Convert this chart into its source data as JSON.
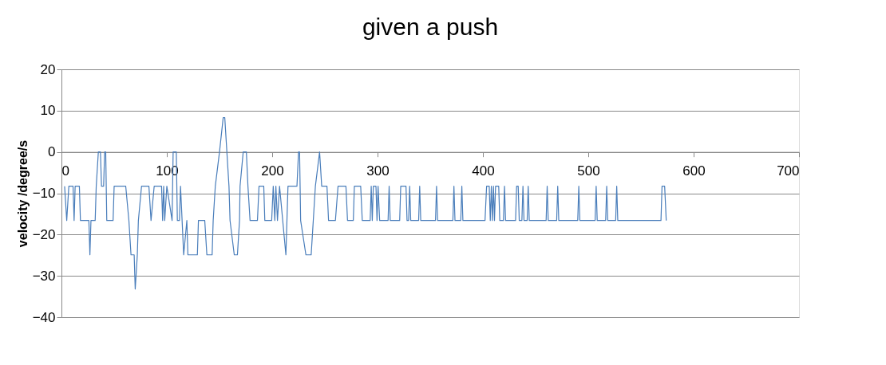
{
  "chart_data": {
    "type": "line",
    "title": "given a push",
    "ylabel": "velocity /degree/s",
    "x": [
      3,
      5,
      7,
      11,
      12,
      13,
      17,
      18,
      26,
      27,
      28,
      32,
      33,
      35,
      37,
      38,
      40,
      41,
      42,
      43,
      49,
      50,
      61,
      64,
      66,
      69,
      70,
      72,
      73,
      76,
      83,
      85,
      88,
      95,
      96,
      97,
      98,
      100,
      105,
      106,
      109,
      110,
      112,
      113,
      116,
      119,
      120,
      129,
      130,
      136,
      138,
      143,
      144,
      146,
      150,
      153.5,
      155,
      157,
      159,
      160,
      164,
      167,
      169,
      169.5,
      172.5,
      175.5,
      177,
      179,
      186,
      187.5,
      192,
      193,
      199.5,
      201,
      202.5,
      203.5,
      205,
      207,
      213,
      215,
      223.5,
      225,
      226,
      227,
      232,
      237,
      239,
      241,
      245,
      247,
      252,
      253.5,
      260,
      262.5,
      270,
      271.5,
      277,
      278,
      284,
      285.5,
      293,
      294,
      295,
      296,
      298.5,
      299.5,
      300.5,
      302,
      310,
      311,
      312,
      321,
      322,
      327,
      328,
      329.5,
      330.5,
      331.5,
      339,
      340,
      341,
      355,
      356,
      357,
      371.5,
      372.5,
      373.5,
      379,
      380,
      381,
      402,
      403.5,
      406,
      407,
      408,
      409,
      410,
      411,
      412,
      415,
      416,
      419.5,
      420.5,
      421.5,
      431,
      432,
      433.5,
      434.5,
      437,
      438,
      439,
      442,
      443,
      444,
      460,
      461,
      462,
      470,
      471,
      472,
      490,
      491,
      492,
      506.5,
      507.5,
      508.5,
      516.5,
      517.5,
      518.5,
      526,
      527,
      528,
      569,
      570,
      572.5,
      574
    ],
    "series": [
      {
        "color": "#4a7ebb",
        "values": [
          -8.3,
          -16.6,
          -8.3,
          -8.3,
          -16.6,
          -8.3,
          -8.3,
          -16.6,
          -16.6,
          -24.9,
          -16.6,
          -16.6,
          -8.3,
          0,
          0,
          -8.3,
          -8.3,
          0,
          0,
          -16.6,
          -16.6,
          -8.3,
          -8.3,
          -16.6,
          -24.9,
          -24.9,
          -33.2,
          -24.9,
          -16.6,
          -8.3,
          -8.3,
          -16.6,
          -8.3,
          -8.3,
          -16.6,
          -8.3,
          -16.6,
          -8.3,
          -16.6,
          0,
          0,
          -16.6,
          -16.6,
          -8.3,
          -24.9,
          -16.6,
          -24.9,
          -24.9,
          -16.6,
          -16.6,
          -24.9,
          -24.9,
          -16.6,
          -8.3,
          0,
          8.3,
          8.3,
          0,
          -8.3,
          -16.6,
          -24.9,
          -24.9,
          -16.6,
          -8.3,
          0,
          0,
          -8.3,
          -16.6,
          -16.6,
          -8.3,
          -8.3,
          -16.6,
          -16.6,
          -8.3,
          -16.6,
          -8.3,
          -16.6,
          -8.3,
          -24.9,
          -8.3,
          -8.3,
          0,
          0,
          -16.6,
          -24.9,
          -24.9,
          -16.6,
          -8.3,
          0,
          -8.3,
          -8.3,
          -16.6,
          -16.6,
          -8.3,
          -8.3,
          -16.6,
          -16.6,
          -8.3,
          -8.3,
          -16.6,
          -16.6,
          -8.3,
          -16.6,
          -8.3,
          -8.3,
          -16.6,
          -8.3,
          -16.6,
          -16.6,
          -8.3,
          -16.6,
          -16.6,
          -8.3,
          -8.3,
          -16.6,
          -16.6,
          -8.3,
          -16.6,
          -16.6,
          -8.3,
          -16.6,
          -16.6,
          -8.3,
          -16.6,
          -16.6,
          -8.3,
          -16.6,
          -16.6,
          -8.3,
          -16.6,
          -16.6,
          -8.3,
          -8.3,
          -16.6,
          -8.3,
          -16.6,
          -8.3,
          -16.6,
          -8.3,
          -8.3,
          -16.6,
          -16.6,
          -8.3,
          -16.6,
          -16.6,
          -8.3,
          -8.3,
          -16.6,
          -16.6,
          -8.3,
          -16.6,
          -16.6,
          -8.3,
          -16.6,
          -16.6,
          -8.3,
          -16.6,
          -16.6,
          -8.3,
          -16.6,
          -16.6,
          -8.3,
          -16.6,
          -16.6,
          -8.3,
          -16.6,
          -16.6,
          -8.3,
          -16.6,
          -16.6,
          -8.3,
          -16.6,
          -16.6,
          -8.3,
          -8.3,
          -16.6
        ]
      }
    ],
    "xlim": [
      0,
      700
    ],
    "xticks": [
      0,
      100,
      200,
      300,
      400,
      500,
      600,
      700
    ],
    "ylim": [
      -40,
      20
    ],
    "yticks": [
      -40,
      -30,
      -20,
      -10,
      0,
      10,
      20
    ],
    "grid": "y",
    "marker": "none",
    "line_style": "solid"
  }
}
